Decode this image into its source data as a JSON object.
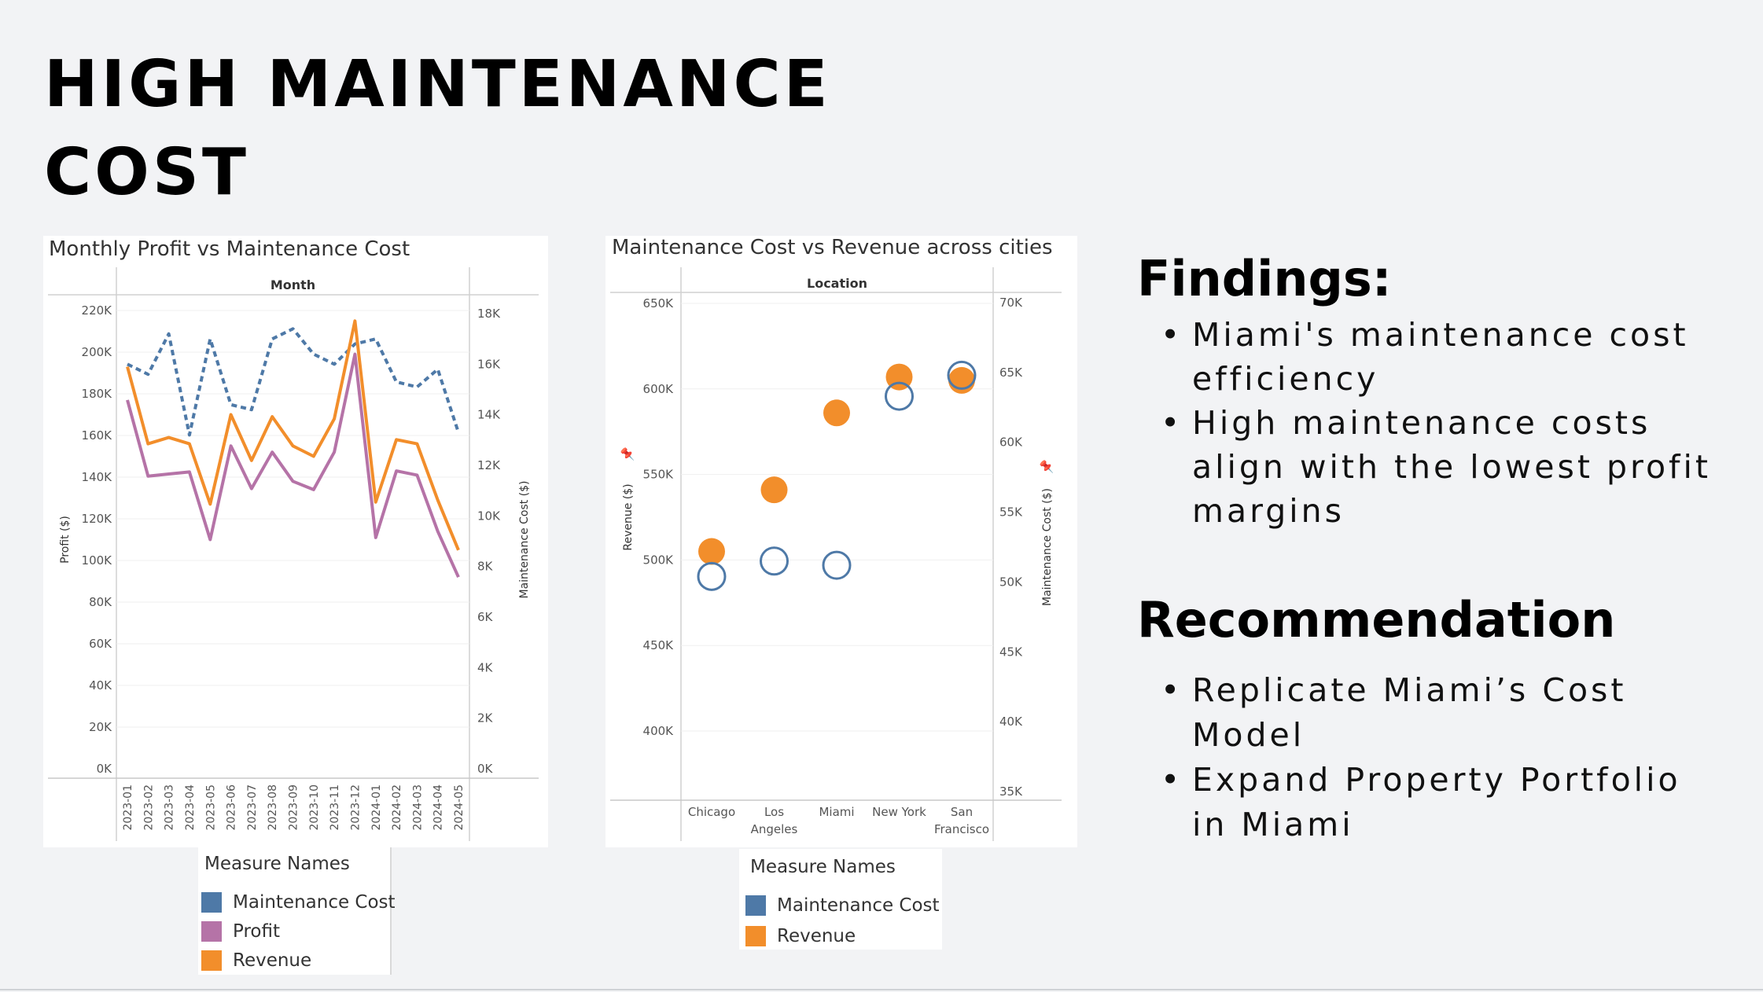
{
  "page": {
    "title_line1": "HIGH MAINTENANCE",
    "title_line2": "COST"
  },
  "colors": {
    "maintenance": "#4e79a7",
    "profit": "#b573a7",
    "revenue": "#f28e2b",
    "background": "#f2f3f5"
  },
  "chart_data": [
    {
      "type": "line",
      "title": "Monthly Profit vs Maintenance Cost",
      "header": "Month",
      "xlabel": "",
      "ylabel": "Profit ($)",
      "y2label": "Maintenance Cost ($)",
      "categories": [
        "2023-01",
        "2023-02",
        "2023-03",
        "2023-04",
        "2023-05",
        "2023-06",
        "2023-07",
        "2023-08",
        "2023-09",
        "2023-10",
        "2023-11",
        "2023-12",
        "2024-01",
        "2024-02",
        "2024-03",
        "2024-04",
        "2024-05"
      ],
      "ylim": [
        0,
        220000
      ],
      "y2lim": [
        0,
        18000
      ],
      "yticks": [
        "0K",
        "20K",
        "40K",
        "60K",
        "80K",
        "100K",
        "120K",
        "140K",
        "160K",
        "180K",
        "200K",
        "220K"
      ],
      "y2ticks": [
        "0K",
        "2K",
        "4K",
        "6K",
        "8K",
        "10K",
        "12K",
        "14K",
        "16K",
        "18K"
      ],
      "grid": true,
      "series": [
        {
          "name": "Maintenance Cost",
          "axis": "right",
          "style": "dashed",
          "values": [
            16000,
            15600,
            17200,
            13200,
            17000,
            14400,
            14200,
            17000,
            17400,
            16400,
            16000,
            16800,
            17000,
            15300,
            15100,
            15800,
            13300
          ]
        },
        {
          "name": "Profit",
          "axis": "left",
          "style": "solid",
          "values": [
            177000,
            140500,
            141500,
            142500,
            110000,
            155000,
            134500,
            152000,
            138000,
            134000,
            152000,
            199000,
            111000,
            143000,
            141000,
            114000,
            92000
          ]
        },
        {
          "name": "Revenue",
          "axis": "left",
          "style": "solid",
          "values": [
            193000,
            156000,
            159000,
            156000,
            127000,
            170000,
            148000,
            169000,
            155000,
            150000,
            168000,
            215000,
            128000,
            158000,
            156000,
            129000,
            105000
          ]
        }
      ]
    },
    {
      "type": "scatter",
      "title": "Maintenance Cost vs Revenue across cities",
      "header": "Location",
      "ylabel": "Revenue ($)",
      "y2label": "Maintenance Cost ($)",
      "categories": [
        "Chicago",
        "Los Angeles",
        "Miami",
        "New York",
        "San Francisco"
      ],
      "category_lines": [
        [
          "Chicago"
        ],
        [
          "Los",
          "Angeles"
        ],
        [
          "Miami"
        ],
        [
          "New York"
        ],
        [
          "San",
          "Francisco"
        ]
      ],
      "ylim": [
        365000,
        650000
      ],
      "y2lim": [
        35000,
        70000
      ],
      "yticks": [
        "400K",
        "450K",
        "500K",
        "550K",
        "600K",
        "650K"
      ],
      "y2ticks": [
        "35K",
        "40K",
        "45K",
        "50K",
        "55K",
        "60K",
        "65K",
        "70K"
      ],
      "grid": true,
      "series": [
        {
          "name": "Revenue",
          "axis": "left",
          "marker": "filled-circle",
          "values": [
            505000,
            541000,
            586000,
            607000,
            605000
          ]
        },
        {
          "name": "Maintenance Cost",
          "axis": "right",
          "marker": "open-circle",
          "values": [
            50400,
            51500,
            51200,
            63300,
            64800
          ]
        }
      ]
    }
  ],
  "legend1": {
    "title": "Measure Names",
    "items": [
      {
        "label": "Maintenance Cost",
        "color": "#4e79a7"
      },
      {
        "label": "Profit",
        "color": "#b573a7"
      },
      {
        "label": "Revenue",
        "color": "#f28e2b"
      }
    ]
  },
  "legend2": {
    "title": "Measure Names",
    "items": [
      {
        "label": "Maintenance Cost",
        "color": "#4e79a7"
      },
      {
        "label": "Revenue",
        "color": "#f28e2b"
      }
    ]
  },
  "findings": {
    "heading": "Findings:",
    "items": [
      "Miami's maintenance cost efficiency",
      "High maintenance costs align with the lowest profit margins"
    ]
  },
  "recommendation": {
    "heading": "Recommendation",
    "items": [
      "Replicate Miami’s Cost Model",
      "Expand Property Portfolio in Miami"
    ]
  }
}
